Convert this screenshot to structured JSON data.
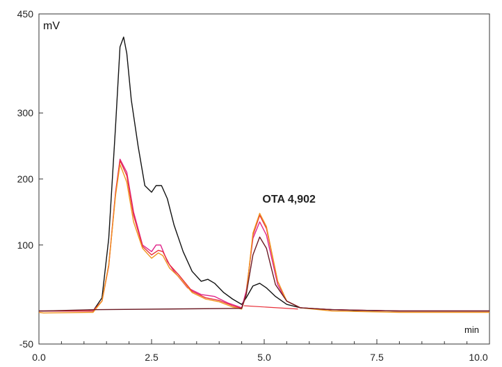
{
  "chart_data": {
    "type": "line",
    "xlabel": "min",
    "ylabel": "mV",
    "xlim": [
      0,
      10
    ],
    "ylim": [
      -50,
      450
    ],
    "x_ticks": [
      "0.0",
      "2.5",
      "5.0",
      "7.5",
      "10.0"
    ],
    "y_ticks": [
      "-50",
      "100",
      "200",
      "300",
      "450"
    ],
    "y_tick_values": [
      -50,
      100,
      200,
      300,
      450
    ],
    "x_tick_values": [
      0,
      2.5,
      5,
      7.5,
      10
    ],
    "annotation": "OTA 4,902",
    "annotation_x": 4.902,
    "annotation_y": 160,
    "colors": {
      "black": "#111111",
      "magenta": "#e0248a",
      "red": "#e8303a",
      "orange": "#f0961e",
      "darkred": "#6b1a24"
    },
    "series": [
      {
        "color": "black",
        "x": [
          0,
          0.1,
          1.2,
          1.4,
          1.55,
          1.7,
          1.8,
          1.88,
          1.95,
          2.05,
          2.2,
          2.35,
          2.5,
          2.6,
          2.72,
          2.85,
          3.0,
          3.2,
          3.4,
          3.6,
          3.75,
          3.9,
          4.1,
          4.3,
          4.5,
          4.6,
          4.75,
          4.9,
          5.05,
          5.25,
          5.5,
          5.8,
          6.2,
          7.0,
          8.0,
          9.0,
          10.0
        ],
        "y": [
          0,
          0,
          0,
          20,
          110,
          280,
          400,
          415,
          390,
          320,
          250,
          190,
          180,
          190,
          190,
          170,
          130,
          90,
          60,
          45,
          48,
          42,
          28,
          18,
          10,
          20,
          38,
          42,
          35,
          22,
          10,
          5,
          3,
          1,
          0,
          0,
          0
        ]
      },
      {
        "color": "magenta",
        "x": [
          0,
          0.1,
          1.2,
          1.4,
          1.55,
          1.7,
          1.8,
          1.95,
          2.1,
          2.3,
          2.5,
          2.6,
          2.7,
          2.85,
          3.0,
          3.3,
          3.6,
          3.9,
          4.2,
          4.5,
          4.6,
          4.75,
          4.9,
          5.05,
          5.3,
          5.5,
          5.8,
          6.5,
          8.0,
          10.0
        ],
        "y": [
          0,
          0,
          0,
          15,
          70,
          180,
          230,
          210,
          150,
          100,
          90,
          100,
          100,
          75,
          60,
          35,
          25,
          22,
          12,
          5,
          30,
          110,
          135,
          115,
          40,
          15,
          5,
          2,
          0,
          0
        ]
      },
      {
        "color": "red",
        "x": [
          0,
          0.1,
          1.2,
          1.4,
          1.55,
          1.7,
          1.8,
          1.95,
          2.1,
          2.3,
          2.5,
          2.65,
          2.75,
          2.9,
          3.1,
          3.4,
          3.7,
          4.0,
          4.3,
          4.5,
          4.6,
          4.75,
          4.9,
          5.05,
          5.3,
          5.5,
          5.8,
          6.5,
          8.0,
          10.0
        ],
        "y": [
          0,
          0,
          0,
          15,
          68,
          178,
          228,
          205,
          145,
          98,
          85,
          92,
          90,
          70,
          55,
          30,
          20,
          16,
          8,
          4,
          25,
          115,
          145,
          125,
          45,
          15,
          5,
          2,
          0,
          0
        ]
      },
      {
        "color": "orange",
        "x": [
          0,
          0.1,
          1.2,
          1.4,
          1.55,
          1.7,
          1.8,
          1.95,
          2.1,
          2.3,
          2.5,
          2.65,
          2.75,
          2.9,
          3.1,
          3.4,
          3.7,
          4.0,
          4.3,
          4.5,
          4.6,
          4.75,
          4.9,
          5.05,
          5.3,
          5.5,
          5.8,
          6.5,
          8.0,
          10.0
        ],
        "y": [
          -2,
          -3,
          -2,
          15,
          70,
          175,
          222,
          195,
          135,
          95,
          80,
          88,
          84,
          65,
          52,
          28,
          18,
          14,
          6,
          3,
          25,
          118,
          148,
          128,
          45,
          15,
          5,
          0,
          -2,
          -2
        ]
      },
      {
        "color": "darkred",
        "x": [
          0,
          0.1,
          1.2,
          4.5,
          4.6,
          4.75,
          4.9,
          5.05,
          5.25,
          5.5,
          5.8,
          6.5,
          8.0,
          10.0
        ],
        "y": [
          0,
          0,
          2,
          4,
          25,
          85,
          112,
          95,
          40,
          15,
          5,
          2,
          0,
          0
        ]
      }
    ],
    "baseline": {
      "x": [
        4.55,
        5.75
      ],
      "y": [
        8,
        3
      ],
      "color": "red"
    }
  }
}
